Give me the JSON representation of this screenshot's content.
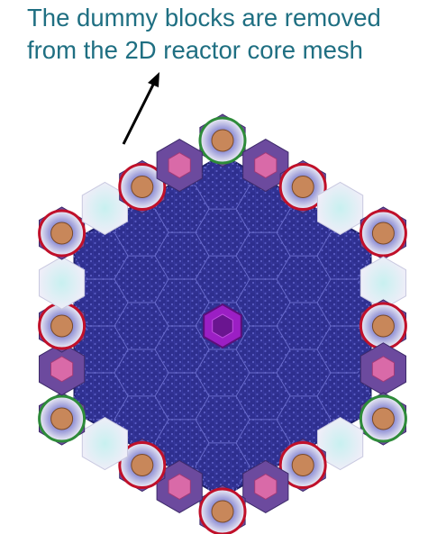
{
  "annotation": {
    "line1": "The dummy blocks are removed",
    "line2": "from the 2D reactor core mesh"
  },
  "colors": {
    "annotation_text": "#1f6f82",
    "fuel_mesh": "#2e2f8f",
    "fuel_mesh_light": "#3a3ca6",
    "center_block": "#9b1fc4",
    "reflector_block": "#6c4a9e",
    "reflector_pink": "#d96aa8",
    "control_rod_disc": "#e4e4ec",
    "control_rod_core": "#c8875a",
    "control_rod_ring_red": "#c0102a",
    "control_rod_ring_green": "#2e8b3a",
    "dummy_block": "#e9e9f4",
    "dummy_block_center": "#c8f0f0"
  },
  "icons": {
    "arrow": "arrow-up-right-icon"
  }
}
